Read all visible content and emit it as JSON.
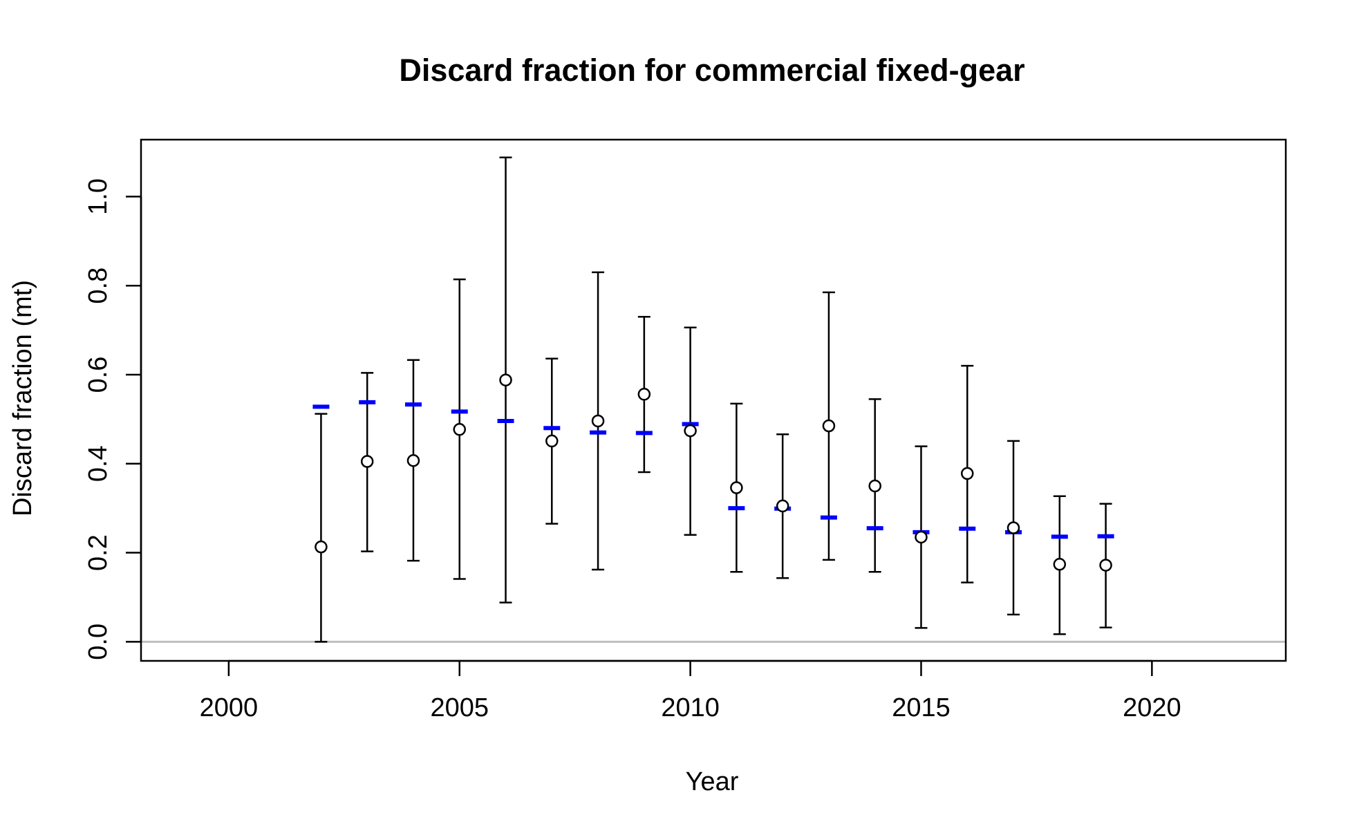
{
  "chart_data": {
    "type": "scatter",
    "title": "Discard fraction for commercial fixed-gear",
    "xlabel": "Year",
    "ylabel": "Discard fraction (mt)",
    "xlim": [
      1998.1,
      2022.9
    ],
    "ylim": [
      -0.043,
      1.128
    ],
    "xticks": [
      "2000",
      "2005",
      "2010",
      "2015",
      "2020"
    ],
    "xtick_values": [
      2000,
      2005,
      2010,
      2015,
      2020
    ],
    "yticks": [
      "0.0",
      "0.2",
      "0.4",
      "0.6",
      "0.8",
      "1.0"
    ],
    "ytick_values": [
      0,
      0.2,
      0.4,
      0.6,
      0.8,
      1.0
    ],
    "grid": false,
    "reference_line": {
      "y": 0,
      "color": "#bebebe"
    },
    "colors": {
      "observed": "#000000",
      "expected": "#0000ff"
    },
    "series": [
      {
        "marker": "open-circle",
        "x": [
          2002,
          2003,
          2004,
          2005,
          2006,
          2007,
          2008,
          2009,
          2010,
          2011,
          2012,
          2013,
          2014,
          2015,
          2016,
          2017,
          2018,
          2019
        ],
        "values": [
          0.213,
          0.405,
          0.407,
          0.477,
          0.588,
          0.451,
          0.496,
          0.556,
          0.474,
          0.346,
          0.305,
          0.485,
          0.35,
          0.235,
          0.378,
          0.256,
          0.174,
          0.172
        ],
        "lower": [
          0.0,
          0.203,
          0.182,
          0.141,
          0.088,
          0.265,
          0.162,
          0.381,
          0.24,
          0.157,
          0.143,
          0.184,
          0.157,
          0.031,
          0.133,
          0.061,
          0.017,
          0.032
        ],
        "upper": [
          0.512,
          0.604,
          0.633,
          0.814,
          1.088,
          0.636,
          0.83,
          0.73,
          0.706,
          0.535,
          0.466,
          0.785,
          0.545,
          0.439,
          0.62,
          0.451,
          0.327,
          0.31
        ]
      },
      {
        "marker": "dash",
        "x": [
          2002,
          2003,
          2004,
          2005,
          2006,
          2007,
          2008,
          2009,
          2010,
          2011,
          2012,
          2013,
          2014,
          2015,
          2016,
          2017,
          2018,
          2019
        ],
        "values": [
          0.528,
          0.538,
          0.533,
          0.517,
          0.496,
          0.48,
          0.47,
          0.469,
          0.489,
          0.3,
          0.299,
          0.279,
          0.255,
          0.246,
          0.254,
          0.246,
          0.236,
          0.237
        ]
      }
    ]
  }
}
